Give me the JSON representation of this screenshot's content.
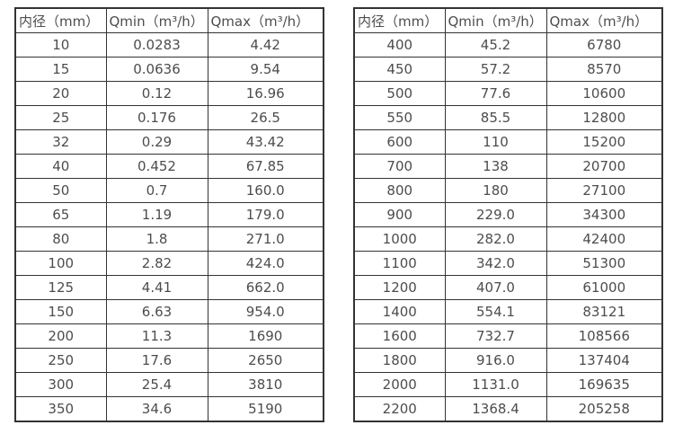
{
  "colors": {
    "border": "#333333",
    "text": "#4d4d4d",
    "background": "#ffffff"
  },
  "tables": [
    {
      "name": "flow-table-small-diameters",
      "headers": [
        "内径（mm）",
        "Qmin（m³/h）",
        "Qmax（m³/h）"
      ],
      "rows": [
        [
          "10",
          "0.0283",
          "4.42"
        ],
        [
          "15",
          "0.0636",
          "9.54"
        ],
        [
          "20",
          "0.12",
          "16.96"
        ],
        [
          "25",
          "0.176",
          "26.5"
        ],
        [
          "32",
          "0.29",
          "43.42"
        ],
        [
          "40",
          "0.452",
          "67.85"
        ],
        [
          "50",
          "0.7",
          "160.0"
        ],
        [
          "65",
          "1.19",
          "179.0"
        ],
        [
          "80",
          "1.8",
          "271.0"
        ],
        [
          "100",
          "2.82",
          "424.0"
        ],
        [
          "125",
          "4.41",
          "662.0"
        ],
        [
          "150",
          "6.63",
          "954.0"
        ],
        [
          "200",
          "11.3",
          "1690"
        ],
        [
          "250",
          "17.6",
          "2650"
        ],
        [
          "300",
          "25.4",
          "3810"
        ],
        [
          "350",
          "34.6",
          "5190"
        ]
      ]
    },
    {
      "name": "flow-table-large-diameters",
      "headers": [
        "内径（mm）",
        "Qmin（m³/h）",
        "Qmax（m³/h）"
      ],
      "rows": [
        [
          "400",
          "45.2",
          "6780"
        ],
        [
          "450",
          "57.2",
          "8570"
        ],
        [
          "500",
          "77.6",
          "10600"
        ],
        [
          "550",
          "85.5",
          "12800"
        ],
        [
          "600",
          "110",
          "15200"
        ],
        [
          "700",
          "138",
          "20700"
        ],
        [
          "800",
          "180",
          "27100"
        ],
        [
          "900",
          "229.0",
          "34300"
        ],
        [
          "1000",
          "282.0",
          "42400"
        ],
        [
          "1100",
          "342.0",
          "51300"
        ],
        [
          "1200",
          "407.0",
          "61000"
        ],
        [
          "1400",
          "554.1",
          "83121"
        ],
        [
          "1600",
          "732.7",
          "108566"
        ],
        [
          "1800",
          "916.0",
          "137404"
        ],
        [
          "2000",
          "1131.0",
          "169635"
        ],
        [
          "2200",
          "1368.4",
          "205258"
        ]
      ]
    }
  ]
}
